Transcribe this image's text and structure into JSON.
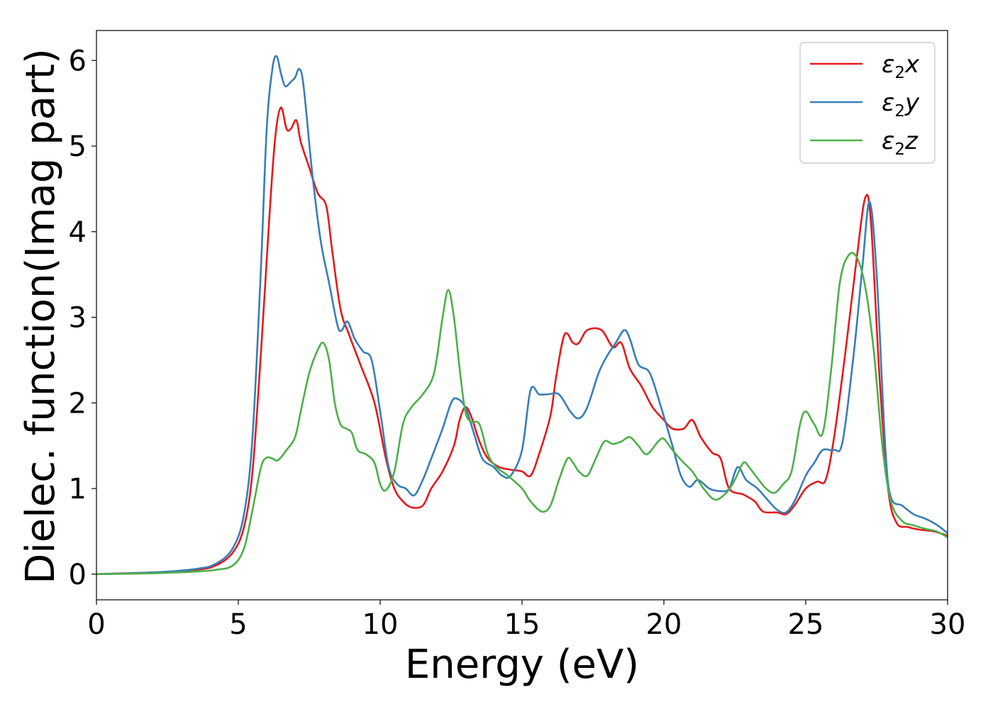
{
  "chart_data": {
    "type": "line",
    "title": "",
    "xlabel": "Energy (eV)",
    "ylabel": "Dielec. function(Imag part)",
    "xlim": [
      0,
      30
    ],
    "ylim": [
      -0.3,
      6.35
    ],
    "xticks": [
      0,
      5,
      10,
      15,
      20,
      25,
      30
    ],
    "yticks": [
      0,
      1,
      2,
      3,
      4,
      5,
      6
    ],
    "grid": false,
    "legend_position": "top-right",
    "series": [
      {
        "name": "ε2x",
        "legend_base": "ε",
        "legend_sub": "2",
        "legend_suffix": "x",
        "color": "#e41a1c",
        "points": [
          [
            0,
            0
          ],
          [
            2,
            0.02
          ],
          [
            3.5,
            0.05
          ],
          [
            4.2,
            0.1
          ],
          [
            4.8,
            0.25
          ],
          [
            5.2,
            0.55
          ],
          [
            5.5,
            1.2
          ],
          [
            5.8,
            2.6
          ],
          [
            6.1,
            4.2
          ],
          [
            6.3,
            5.1
          ],
          [
            6.5,
            5.45
          ],
          [
            6.7,
            5.2
          ],
          [
            6.85,
            5.2
          ],
          [
            7.05,
            5.3
          ],
          [
            7.2,
            5.05
          ],
          [
            7.5,
            4.75
          ],
          [
            7.8,
            4.45
          ],
          [
            8.1,
            4.3
          ],
          [
            8.3,
            3.8
          ],
          [
            8.6,
            3.1
          ],
          [
            8.9,
            2.8
          ],
          [
            9.3,
            2.45
          ],
          [
            9.8,
            2.0
          ],
          [
            10.2,
            1.35
          ],
          [
            10.5,
            1.0
          ],
          [
            10.8,
            0.85
          ],
          [
            11.1,
            0.78
          ],
          [
            11.5,
            0.8
          ],
          [
            11.8,
            1.0
          ],
          [
            12.2,
            1.2
          ],
          [
            12.6,
            1.5
          ],
          [
            12.8,
            1.8
          ],
          [
            13.0,
            1.95
          ],
          [
            13.2,
            1.85
          ],
          [
            13.5,
            1.55
          ],
          [
            13.8,
            1.35
          ],
          [
            14.2,
            1.25
          ],
          [
            14.6,
            1.22
          ],
          [
            15.0,
            1.2
          ],
          [
            15.3,
            1.15
          ],
          [
            15.6,
            1.4
          ],
          [
            16.0,
            1.85
          ],
          [
            16.2,
            2.3
          ],
          [
            16.5,
            2.8
          ],
          [
            16.8,
            2.7
          ],
          [
            17.0,
            2.7
          ],
          [
            17.3,
            2.85
          ],
          [
            17.8,
            2.85
          ],
          [
            18.2,
            2.65
          ],
          [
            18.5,
            2.7
          ],
          [
            18.8,
            2.4
          ],
          [
            19.2,
            2.2
          ],
          [
            19.6,
            1.95
          ],
          [
            20.0,
            1.8
          ],
          [
            20.3,
            1.7
          ],
          [
            20.7,
            1.7
          ],
          [
            21.0,
            1.8
          ],
          [
            21.3,
            1.6
          ],
          [
            21.7,
            1.42
          ],
          [
            22.0,
            1.35
          ],
          [
            22.3,
            1.0
          ],
          [
            22.8,
            0.93
          ],
          [
            23.2,
            0.85
          ],
          [
            23.5,
            0.73
          ],
          [
            24.0,
            0.72
          ],
          [
            24.3,
            0.7
          ],
          [
            24.6,
            0.8
          ],
          [
            25.0,
            1.0
          ],
          [
            25.4,
            1.08
          ],
          [
            25.7,
            1.1
          ],
          [
            26.0,
            1.6
          ],
          [
            26.4,
            2.6
          ],
          [
            26.8,
            3.7
          ],
          [
            27.1,
            4.4
          ],
          [
            27.3,
            4.1
          ],
          [
            27.6,
            2.3
          ],
          [
            27.9,
            1.0
          ],
          [
            28.2,
            0.6
          ],
          [
            28.6,
            0.55
          ],
          [
            29.0,
            0.52
          ],
          [
            29.5,
            0.5
          ],
          [
            30.0,
            0.45
          ]
        ]
      },
      {
        "name": "ε2y",
        "legend_base": "ε",
        "legend_sub": "2",
        "legend_suffix": "y",
        "color": "#377eb8",
        "points": [
          [
            0,
            0
          ],
          [
            2,
            0.02
          ],
          [
            3.5,
            0.06
          ],
          [
            4.2,
            0.12
          ],
          [
            4.8,
            0.3
          ],
          [
            5.2,
            0.7
          ],
          [
            5.5,
            1.6
          ],
          [
            5.8,
            3.6
          ],
          [
            6.0,
            5.2
          ],
          [
            6.2,
            5.9
          ],
          [
            6.35,
            6.05
          ],
          [
            6.5,
            5.85
          ],
          [
            6.65,
            5.7
          ],
          [
            6.85,
            5.75
          ],
          [
            7.0,
            5.8
          ],
          [
            7.15,
            5.9
          ],
          [
            7.3,
            5.7
          ],
          [
            7.6,
            4.7
          ],
          [
            7.9,
            3.9
          ],
          [
            8.2,
            3.4
          ],
          [
            8.5,
            2.9
          ],
          [
            8.65,
            2.85
          ],
          [
            8.85,
            2.95
          ],
          [
            9.1,
            2.75
          ],
          [
            9.4,
            2.6
          ],
          [
            9.7,
            2.5
          ],
          [
            10.0,
            1.9
          ],
          [
            10.3,
            1.25
          ],
          [
            10.6,
            1.05
          ],
          [
            10.9,
            1.0
          ],
          [
            11.2,
            0.92
          ],
          [
            11.5,
            1.1
          ],
          [
            11.8,
            1.35
          ],
          [
            12.2,
            1.7
          ],
          [
            12.5,
            2.0
          ],
          [
            12.7,
            2.05
          ],
          [
            13.0,
            1.95
          ],
          [
            13.3,
            1.65
          ],
          [
            13.6,
            1.35
          ],
          [
            14.0,
            1.25
          ],
          [
            14.3,
            1.15
          ],
          [
            14.6,
            1.15
          ],
          [
            15.0,
            1.45
          ],
          [
            15.3,
            2.15
          ],
          [
            15.6,
            2.1
          ],
          [
            15.9,
            2.1
          ],
          [
            16.3,
            2.1
          ],
          [
            16.7,
            1.9
          ],
          [
            17.0,
            1.82
          ],
          [
            17.3,
            1.95
          ],
          [
            17.7,
            2.35
          ],
          [
            18.0,
            2.55
          ],
          [
            18.3,
            2.7
          ],
          [
            18.6,
            2.85
          ],
          [
            18.8,
            2.75
          ],
          [
            19.1,
            2.45
          ],
          [
            19.5,
            2.35
          ],
          [
            19.9,
            1.95
          ],
          [
            20.3,
            1.5
          ],
          [
            20.6,
            1.15
          ],
          [
            20.9,
            1.02
          ],
          [
            21.2,
            1.1
          ],
          [
            21.6,
            1.0
          ],
          [
            22.0,
            0.97
          ],
          [
            22.3,
            1.0
          ],
          [
            22.6,
            1.25
          ],
          [
            22.9,
            1.1
          ],
          [
            23.3,
            1.0
          ],
          [
            23.7,
            0.85
          ],
          [
            24.0,
            0.75
          ],
          [
            24.3,
            0.72
          ],
          [
            24.6,
            0.85
          ],
          [
            25.0,
            1.15
          ],
          [
            25.3,
            1.3
          ],
          [
            25.6,
            1.45
          ],
          [
            26.0,
            1.45
          ],
          [
            26.3,
            1.55
          ],
          [
            26.7,
            2.6
          ],
          [
            27.0,
            3.6
          ],
          [
            27.25,
            4.35
          ],
          [
            27.5,
            3.5
          ],
          [
            27.8,
            1.5
          ],
          [
            28.0,
            0.9
          ],
          [
            28.4,
            0.8
          ],
          [
            28.8,
            0.7
          ],
          [
            29.2,
            0.65
          ],
          [
            29.6,
            0.58
          ],
          [
            30.0,
            0.48
          ]
        ]
      },
      {
        "name": "ε2z",
        "legend_base": "ε",
        "legend_sub": "2",
        "legend_suffix": "z",
        "color": "#4daf4a",
        "points": [
          [
            0,
            0
          ],
          [
            2,
            0.01
          ],
          [
            3.5,
            0.03
          ],
          [
            4.2,
            0.05
          ],
          [
            4.8,
            0.1
          ],
          [
            5.2,
            0.3
          ],
          [
            5.5,
            0.75
          ],
          [
            5.8,
            1.25
          ],
          [
            6.0,
            1.36
          ],
          [
            6.2,
            1.35
          ],
          [
            6.4,
            1.33
          ],
          [
            6.7,
            1.45
          ],
          [
            7.0,
            1.6
          ],
          [
            7.2,
            1.9
          ],
          [
            7.5,
            2.35
          ],
          [
            7.8,
            2.62
          ],
          [
            8.0,
            2.7
          ],
          [
            8.2,
            2.5
          ],
          [
            8.4,
            2.0
          ],
          [
            8.6,
            1.75
          ],
          [
            8.8,
            1.7
          ],
          [
            9.0,
            1.65
          ],
          [
            9.2,
            1.45
          ],
          [
            9.5,
            1.4
          ],
          [
            9.8,
            1.3
          ],
          [
            10.0,
            1.05
          ],
          [
            10.2,
            0.98
          ],
          [
            10.5,
            1.2
          ],
          [
            10.8,
            1.75
          ],
          [
            11.1,
            1.95
          ],
          [
            11.5,
            2.1
          ],
          [
            11.9,
            2.35
          ],
          [
            12.2,
            3.0
          ],
          [
            12.4,
            3.32
          ],
          [
            12.6,
            3.0
          ],
          [
            12.8,
            2.4
          ],
          [
            13.0,
            1.9
          ],
          [
            13.2,
            1.78
          ],
          [
            13.5,
            1.75
          ],
          [
            13.8,
            1.4
          ],
          [
            14.1,
            1.25
          ],
          [
            14.5,
            1.15
          ],
          [
            15.0,
            1.0
          ],
          [
            15.3,
            0.85
          ],
          [
            15.7,
            0.73
          ],
          [
            16.0,
            0.8
          ],
          [
            16.3,
            1.1
          ],
          [
            16.6,
            1.35
          ],
          [
            16.8,
            1.3
          ],
          [
            17.0,
            1.2
          ],
          [
            17.3,
            1.15
          ],
          [
            17.6,
            1.35
          ],
          [
            17.9,
            1.55
          ],
          [
            18.2,
            1.52
          ],
          [
            18.5,
            1.55
          ],
          [
            18.8,
            1.6
          ],
          [
            19.1,
            1.5
          ],
          [
            19.4,
            1.4
          ],
          [
            19.8,
            1.55
          ],
          [
            20.0,
            1.58
          ],
          [
            20.3,
            1.45
          ],
          [
            20.7,
            1.3
          ],
          [
            21.0,
            1.2
          ],
          [
            21.4,
            1.0
          ],
          [
            21.8,
            0.87
          ],
          [
            22.2,
            0.95
          ],
          [
            22.5,
            1.1
          ],
          [
            22.8,
            1.3
          ],
          [
            23.0,
            1.25
          ],
          [
            23.3,
            1.12
          ],
          [
            23.6,
            1.0
          ],
          [
            23.9,
            0.95
          ],
          [
            24.2,
            1.05
          ],
          [
            24.5,
            1.2
          ],
          [
            24.8,
            1.75
          ],
          [
            25.0,
            1.9
          ],
          [
            25.3,
            1.75
          ],
          [
            25.6,
            1.65
          ],
          [
            25.9,
            2.4
          ],
          [
            26.2,
            3.4
          ],
          [
            26.5,
            3.72
          ],
          [
            26.8,
            3.7
          ],
          [
            27.1,
            3.35
          ],
          [
            27.4,
            2.6
          ],
          [
            27.7,
            1.5
          ],
          [
            28.0,
            0.85
          ],
          [
            28.4,
            0.62
          ],
          [
            28.8,
            0.57
          ],
          [
            29.2,
            0.53
          ],
          [
            29.6,
            0.5
          ],
          [
            30.0,
            0.43
          ]
        ]
      }
    ]
  }
}
